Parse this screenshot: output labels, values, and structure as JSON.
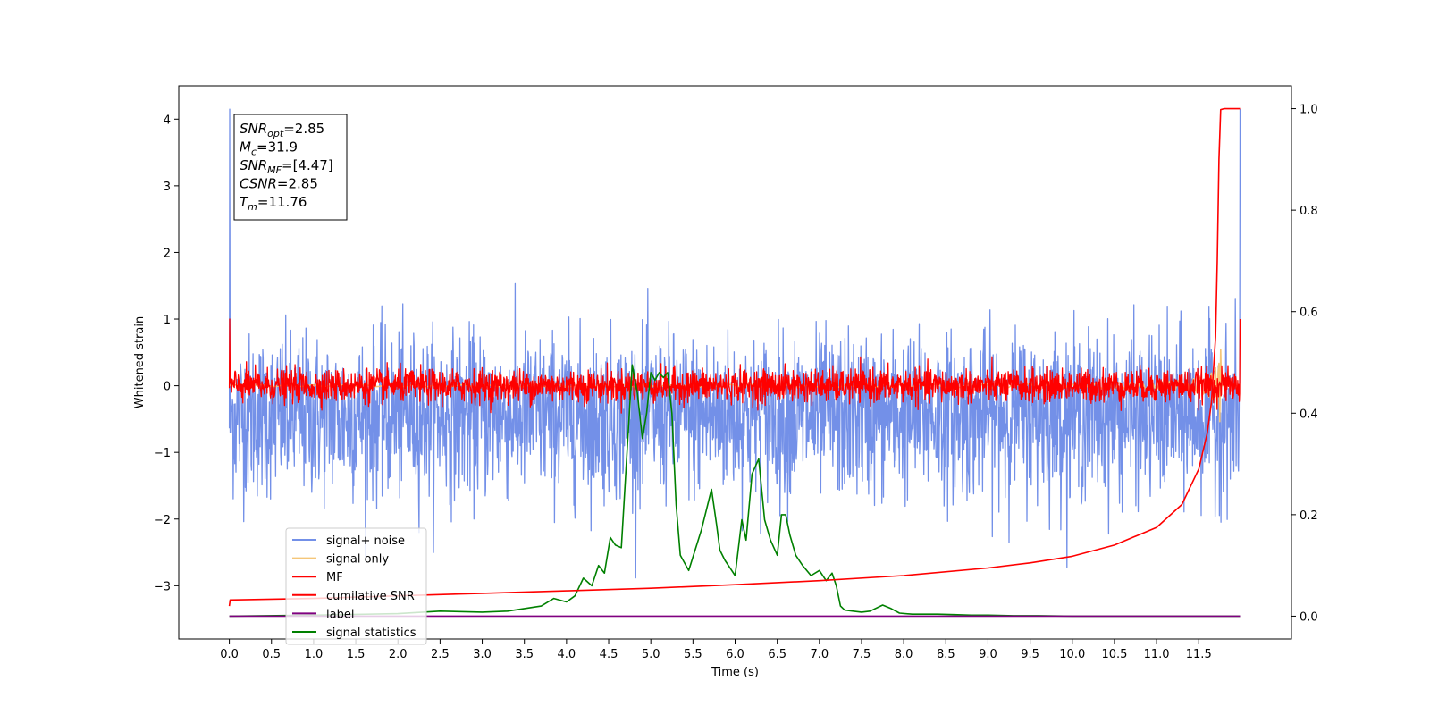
{
  "chart_data": {
    "type": "line",
    "xlabel": "Time (s)",
    "ylabel": "Whitened strain",
    "xlim": [
      -0.6,
      12.6
    ],
    "ylim": [
      -3.8,
      4.5
    ],
    "y2lim": [
      -0.045,
      1.045
    ],
    "x_ticks": [
      0.0,
      0.5,
      1.0,
      1.5,
      2.0,
      2.5,
      3.0,
      3.5,
      4.0,
      4.5,
      5.0,
      5.5,
      6.0,
      6.5,
      7.0,
      7.5,
      8.0,
      8.5,
      9.0,
      9.5,
      10.0,
      10.5,
      11.0,
      11.5
    ],
    "x_tick_labels": [
      "0.0",
      "0.5",
      "1.0",
      "1.5",
      "2.0",
      "2.5",
      "3.0",
      "3.5",
      "4.0",
      "4.5",
      "5.0",
      "5.5",
      "6.0",
      "6.5",
      "7.0",
      "7.5",
      "8.0",
      "8.5",
      "9.0",
      "9.5",
      "10.0",
      "10.5",
      "11.0",
      "11.5"
    ],
    "y_ticks": [
      -3,
      -2,
      -1,
      0,
      1,
      2,
      3,
      4
    ],
    "y_tick_labels": [
      "−3",
      "−2",
      "−1",
      "0",
      "1",
      "2",
      "3",
      "4"
    ],
    "y2_ticks": [
      0.0,
      0.2,
      0.4,
      0.6,
      0.8,
      1.0
    ],
    "y2_tick_labels": [
      "0.0",
      "0.2",
      "0.4",
      "0.6",
      "0.8",
      "1.0"
    ],
    "grid": false,
    "legend_position": "bottom-left",
    "annotation": {
      "lines": [
        {
          "base": "SNR",
          "sub": "opt",
          "value": "=2.85"
        },
        {
          "base": "M",
          "sub": "c",
          "value": "=31.9"
        },
        {
          "base": "SNR",
          "sub": "MF",
          "value": "=[4.47]"
        },
        {
          "base": "CSNR",
          "sub": "",
          "value": "=2.85"
        },
        {
          "base": "T",
          "sub": "m",
          "value": "=11.76"
        }
      ]
    },
    "series": [
      {
        "name": "signal+ noise",
        "color": "#7390e8",
        "axis": "left",
        "kind": "noise",
        "x_range": [
          0.0,
          11.99
        ],
        "center": -0.45,
        "spread": 1.1,
        "max": 4.15,
        "min": -3.5
      },
      {
        "name": "signal only",
        "color": "#f5c679",
        "axis": "left",
        "kind": "chirp",
        "x_range": [
          0.0,
          11.99
        ],
        "peak_time": 11.76,
        "peak_amplitude": 0.55
      },
      {
        "name": "MF",
        "color": "#ff0000",
        "axis": "left",
        "kind": "noise",
        "x_range": [
          0.0,
          11.99
        ],
        "center": 0.0,
        "spread": 0.22,
        "max": 1.0,
        "min": -0.55
      },
      {
        "name": "cumilative SNR",
        "color": "#ff0000",
        "axis": "right",
        "x": [
          0.0,
          0.01,
          1.0,
          2.0,
          3.0,
          4.0,
          5.0,
          6.0,
          7.0,
          8.0,
          9.0,
          9.5,
          10.0,
          10.5,
          11.0,
          11.3,
          11.5,
          11.6,
          11.65,
          11.7,
          11.72,
          11.74,
          11.76,
          11.8,
          11.99
        ],
        "values": [
          0.02,
          0.032,
          0.035,
          0.04,
          0.045,
          0.05,
          0.055,
          0.062,
          0.07,
          0.08,
          0.095,
          0.105,
          0.118,
          0.14,
          0.175,
          0.22,
          0.29,
          0.36,
          0.42,
          0.55,
          0.7,
          0.9,
          0.998,
          1.0,
          1.0
        ]
      },
      {
        "name": "label",
        "color": "#800080",
        "axis": "right",
        "x": [
          0.0,
          11.99
        ],
        "values": [
          0.0,
          0.0
        ]
      },
      {
        "name": "signal statistics",
        "color": "#008000",
        "axis": "right",
        "x": [
          0.0,
          1.0,
          2.0,
          2.5,
          3.0,
          3.3,
          3.5,
          3.7,
          3.85,
          4.0,
          4.1,
          4.2,
          4.3,
          4.38,
          4.45,
          4.52,
          4.58,
          4.65,
          4.72,
          4.78,
          4.84,
          4.9,
          4.95,
          5.0,
          5.05,
          5.1,
          5.15,
          5.2,
          5.25,
          5.3,
          5.35,
          5.45,
          5.6,
          5.72,
          5.78,
          5.82,
          5.88,
          6.0,
          6.08,
          6.13,
          6.2,
          6.28,
          6.35,
          6.42,
          6.5,
          6.55,
          6.6,
          6.65,
          6.72,
          6.8,
          6.9,
          7.0,
          7.08,
          7.15,
          7.2,
          7.25,
          7.3,
          7.4,
          7.5,
          7.6,
          7.75,
          7.85,
          7.95,
          8.1,
          8.4,
          8.6,
          8.8,
          9.0,
          9.3,
          9.6,
          10.0,
          10.5,
          11.0,
          11.5,
          11.99
        ],
        "values": [
          0.0,
          0.002,
          0.005,
          0.01,
          0.008,
          0.01,
          0.015,
          0.02,
          0.035,
          0.028,
          0.04,
          0.075,
          0.06,
          0.1,
          0.085,
          0.155,
          0.14,
          0.135,
          0.33,
          0.495,
          0.44,
          0.35,
          0.4,
          0.48,
          0.465,
          0.48,
          0.47,
          0.48,
          0.4,
          0.22,
          0.12,
          0.09,
          0.17,
          0.25,
          0.18,
          0.13,
          0.11,
          0.08,
          0.19,
          0.15,
          0.28,
          0.31,
          0.19,
          0.15,
          0.12,
          0.2,
          0.2,
          0.16,
          0.12,
          0.1,
          0.08,
          0.09,
          0.07,
          0.085,
          0.06,
          0.02,
          0.012,
          0.01,
          0.008,
          0.01,
          0.022,
          0.015,
          0.006,
          0.004,
          0.004,
          0.003,
          0.002,
          0.002,
          0.001,
          0.001,
          0.0,
          0.0,
          0.0,
          0.0,
          0.0
        ]
      }
    ]
  }
}
